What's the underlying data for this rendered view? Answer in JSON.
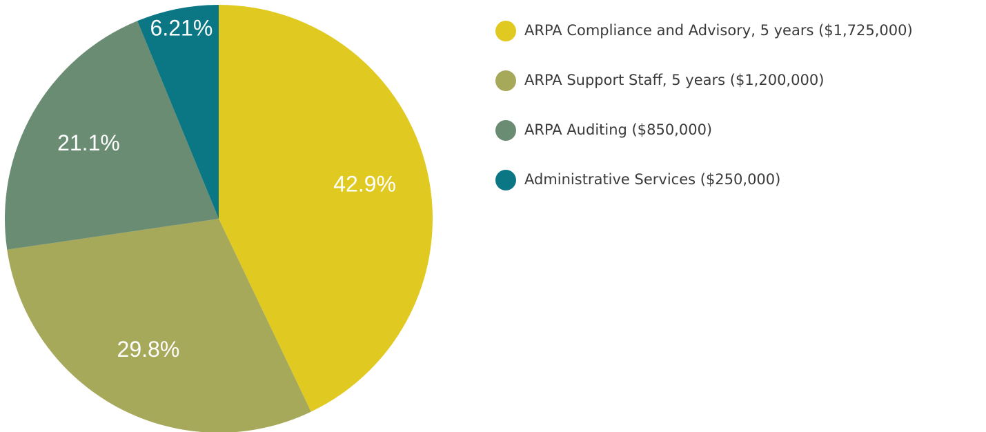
{
  "chart_data": {
    "type": "pie",
    "categories": [
      "ARPA Compliance and Advisory, 5 years ($1,725,000)",
      "ARPA Support Staff, 5 years ($1,200,000)",
      "ARPA Auditing ($850,000)",
      "Administrative Services ($250,000)"
    ],
    "values": [
      42.9,
      29.8,
      21.1,
      6.21
    ],
    "value_labels": [
      "42.9%",
      "29.8%",
      "21.1%",
      "6.21%"
    ],
    "colors": [
      "#e0c920",
      "#a6a85a",
      "#6a8c72",
      "#0b7785"
    ],
    "legend": "right"
  }
}
